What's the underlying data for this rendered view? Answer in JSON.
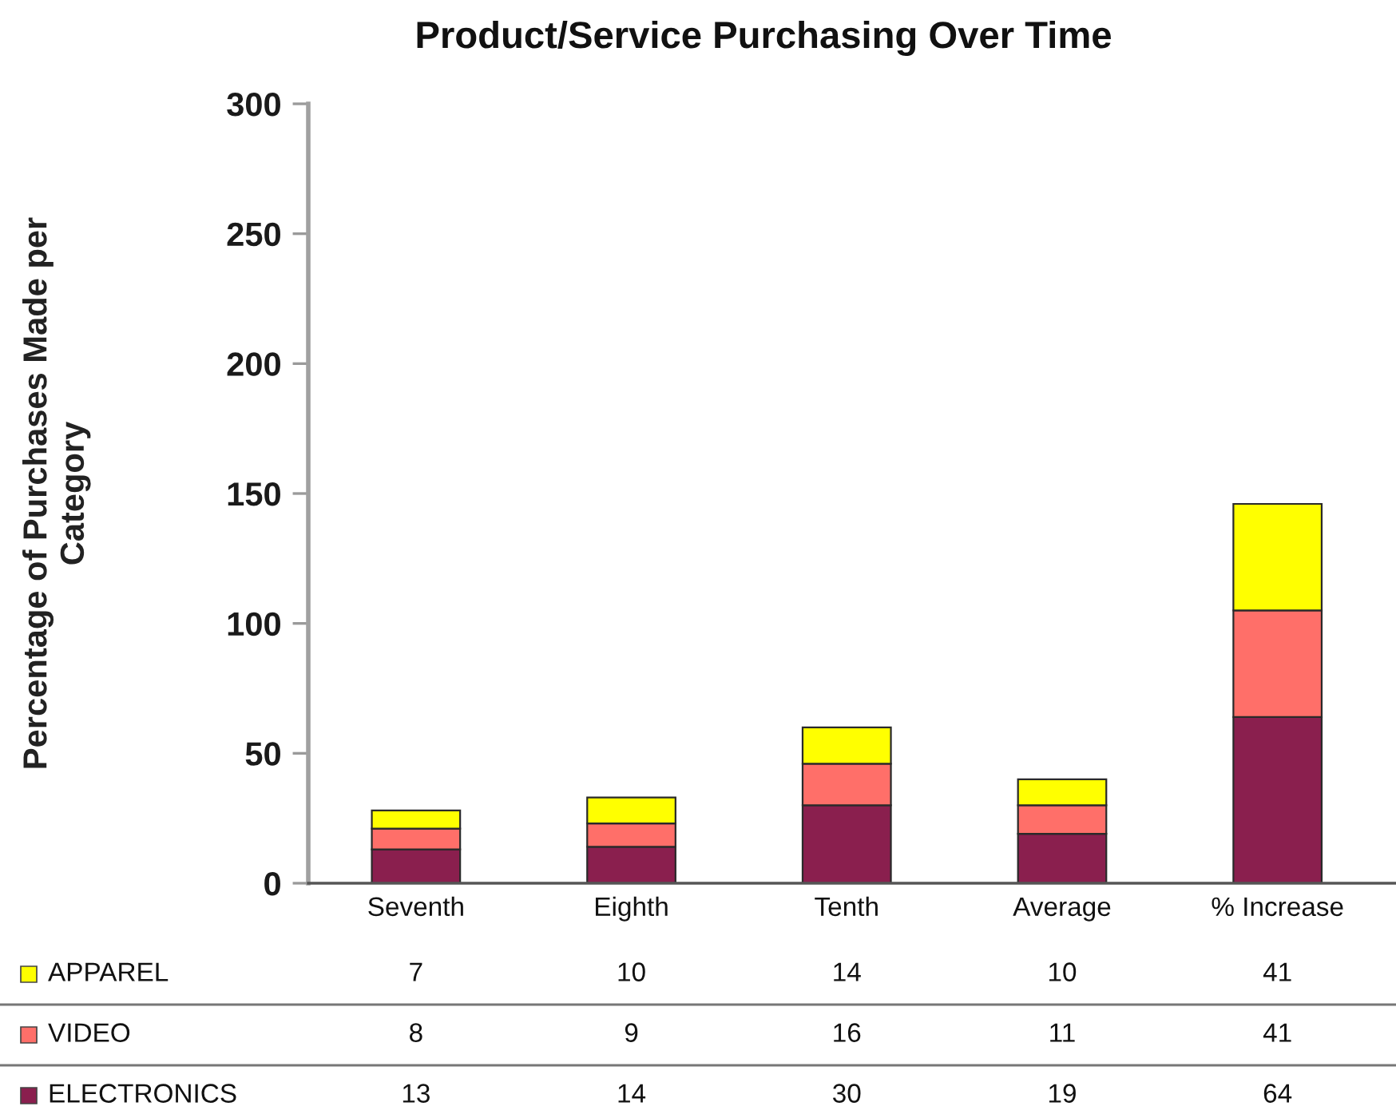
{
  "chart_data": {
    "type": "bar",
    "title": "Product/Service Purchasing Over Time",
    "ylabel": "Percentage of Purchases Made per\nCategory",
    "categories": [
      "Seventh",
      "Eighth",
      "Tenth",
      "Average",
      "% Increase"
    ],
    "stacked": true,
    "series": [
      {
        "name": "ELECTRONICS",
        "color": "#8a1f4e",
        "values": [
          13,
          14,
          30,
          19,
          64
        ]
      },
      {
        "name": "VIDEO",
        "color": "#ff6f69",
        "values": [
          8,
          9,
          16,
          11,
          41
        ]
      },
      {
        "name": "APPAREL",
        "color": "#ffff00",
        "values": [
          7,
          10,
          14,
          10,
          41
        ]
      }
    ],
    "ylim": [
      0,
      300
    ],
    "yticks": [
      0,
      50,
      100,
      150,
      200,
      250,
      300
    ],
    "data_labels": true,
    "legend": "bottom"
  }
}
